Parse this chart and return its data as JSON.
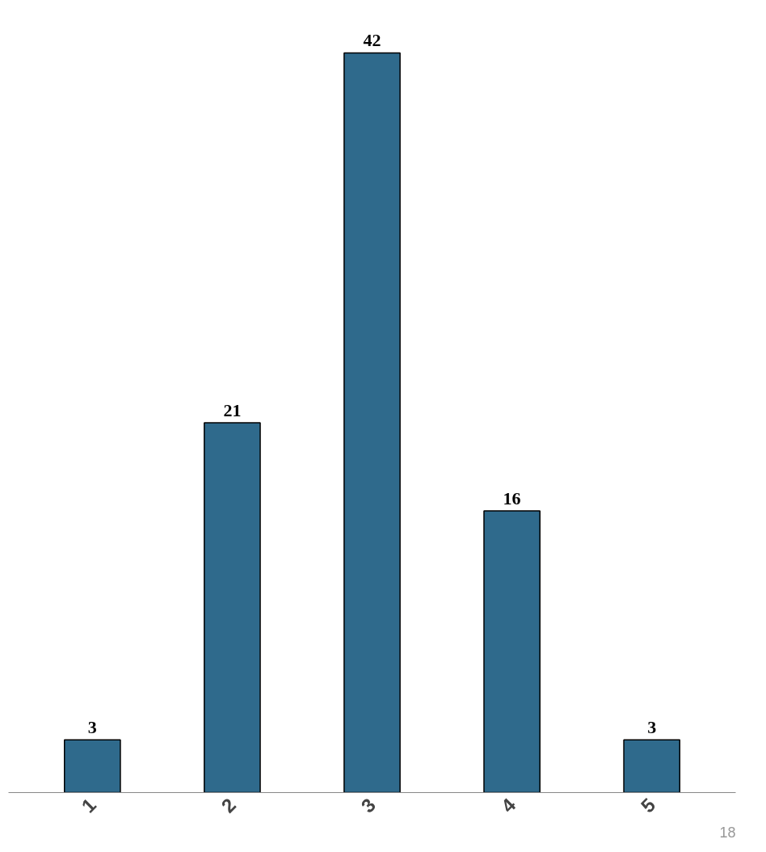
{
  "chart_data": {
    "type": "bar",
    "categories": [
      "1",
      "2",
      "3",
      "4",
      "5"
    ],
    "values": [
      3,
      21,
      42,
      16,
      3
    ],
    "color": "#2f6a8c",
    "data_labels": true,
    "grid": false,
    "annotations": [
      "18"
    ]
  }
}
